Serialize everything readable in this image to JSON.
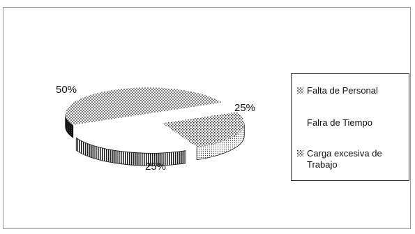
{
  "chart_data": {
    "type": "pie",
    "title": "",
    "categories": [
      "Falta de Personal",
      "Falra de Tiempo",
      "Carga excesiva de Trabajo"
    ],
    "values": [
      25,
      25,
      50
    ],
    "value_labels": [
      "25%",
      "25%",
      "50%"
    ],
    "legend": {
      "placement": "right",
      "entries": [
        "Falta de Personal",
        "Falra de Tiempo",
        "Carga excesiva de Trabajo"
      ]
    },
    "style": "3d-exploded",
    "colors": {
      "slice_top": "#ffffff",
      "pattern_ink": "#222222",
      "frame_border": "#9a9a9a",
      "legend_border": "#333333"
    }
  }
}
